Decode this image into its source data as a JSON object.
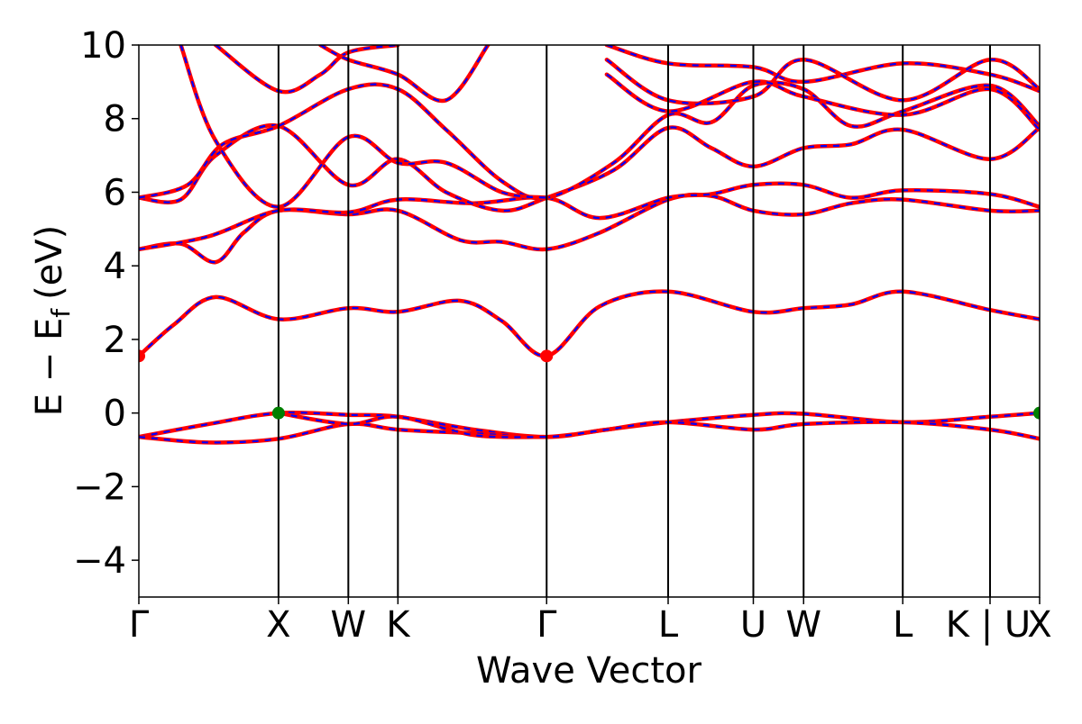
{
  "chart_data": {
    "type": "line",
    "title": "",
    "xlabel": "Wave Vector",
    "ylabel_main": "E − E",
    "ylabel_sub": "f",
    "ylabel_unit": "(eV)",
    "ylim": [
      -5,
      10
    ],
    "yticks": [
      -4,
      -2,
      0,
      2,
      4,
      6,
      8,
      10
    ],
    "ytick_labels": [
      "−4",
      "−2",
      "0",
      "2",
      "4",
      "6",
      "8",
      "10"
    ],
    "xlim": [
      0,
      6.45
    ],
    "kpoints": [
      {
        "label": "Γ",
        "x": 0.0
      },
      {
        "label": "X",
        "x": 1.0
      },
      {
        "label": "W",
        "x": 1.5
      },
      {
        "label": "K",
        "x": 1.855
      },
      {
        "label": "Γ",
        "x": 2.92
      },
      {
        "label": "L",
        "x": 3.79
      },
      {
        "label": "U",
        "x": 4.4
      },
      {
        "label": "W",
        "x": 4.76
      },
      {
        "label": "L",
        "x": 5.47
      },
      {
        "label": "K | U",
        "x": 6.095
      },
      {
        "label": "X",
        "x": 6.45
      }
    ],
    "series_style": [
      {
        "color": "#ff0000",
        "style": "solid"
      },
      {
        "color": "#0000ff",
        "style": "dashed"
      }
    ],
    "markers": [
      {
        "x": 0.0,
        "y": 1.55,
        "color": "#ff0000",
        "meaning": "CBM"
      },
      {
        "x": 2.92,
        "y": 1.55,
        "color": "#ff0000",
        "meaning": "CBM"
      },
      {
        "x": 1.0,
        "y": 0.0,
        "color": "#008000",
        "meaning": "VBM"
      },
      {
        "x": 6.45,
        "y": 0.0,
        "color": "#008000",
        "meaning": "VBM"
      }
    ],
    "bands": [
      {
        "name": "valence-1",
        "points": [
          [
            0,
            -0.65
          ],
          [
            0.5,
            -0.3
          ],
          [
            1.0,
            0.0
          ],
          [
            1.5,
            -0.05
          ],
          [
            1.855,
            -0.1
          ],
          [
            2.4,
            -0.45
          ],
          [
            2.92,
            -0.65
          ],
          [
            3.35,
            -0.45
          ],
          [
            3.79,
            -0.25
          ],
          [
            4.4,
            -0.05
          ],
          [
            4.76,
            -0.02
          ],
          [
            5.47,
            -0.25
          ],
          [
            6.095,
            -0.1
          ],
          [
            6.45,
            0.0
          ]
        ]
      },
      {
        "name": "valence-2",
        "points": [
          [
            0,
            -0.65
          ],
          [
            0.5,
            -0.8
          ],
          [
            1.0,
            -0.7
          ],
          [
            1.5,
            -0.3
          ],
          [
            1.855,
            -0.45
          ],
          [
            2.4,
            -0.55
          ],
          [
            2.92,
            -0.65
          ],
          [
            3.35,
            -0.45
          ],
          [
            3.79,
            -0.25
          ],
          [
            4.4,
            -0.45
          ],
          [
            4.76,
            -0.3
          ],
          [
            5.47,
            -0.25
          ],
          [
            6.095,
            -0.45
          ],
          [
            6.45,
            -0.7
          ]
        ]
      },
      {
        "name": "valence-3",
        "points": [
          [
            1.0,
            0.0
          ],
          [
            1.5,
            -0.3
          ],
          [
            1.855,
            -0.1
          ],
          [
            2.4,
            -0.6
          ],
          [
            2.92,
            -0.65
          ]
        ]
      },
      {
        "name": "conduction-1",
        "points": [
          [
            0,
            1.55
          ],
          [
            0.25,
            2.4
          ],
          [
            0.55,
            3.15
          ],
          [
            1.0,
            2.55
          ],
          [
            1.5,
            2.85
          ],
          [
            1.855,
            2.75
          ],
          [
            2.3,
            3.05
          ],
          [
            2.6,
            2.5
          ],
          [
            2.92,
            1.55
          ],
          [
            3.3,
            2.9
          ],
          [
            3.79,
            3.3
          ],
          [
            4.4,
            2.75
          ],
          [
            4.76,
            2.85
          ],
          [
            5.1,
            2.95
          ],
          [
            5.47,
            3.3
          ],
          [
            6.095,
            2.8
          ],
          [
            6.45,
            2.55
          ]
        ]
      },
      {
        "name": "cb-2",
        "points": [
          [
            0,
            4.45
          ],
          [
            0.3,
            4.6
          ],
          [
            0.55,
            4.1
          ],
          [
            0.75,
            4.9
          ],
          [
            1.0,
            5.5
          ],
          [
            1.5,
            5.4
          ],
          [
            1.855,
            5.5
          ],
          [
            2.3,
            4.7
          ],
          [
            2.6,
            4.65
          ],
          [
            2.92,
            4.45
          ],
          [
            3.3,
            4.9
          ],
          [
            3.79,
            5.8
          ],
          [
            4.1,
            5.9
          ],
          [
            4.4,
            5.5
          ],
          [
            4.76,
            5.4
          ],
          [
            5.1,
            5.7
          ],
          [
            5.47,
            5.8
          ],
          [
            6.095,
            5.5
          ],
          [
            6.45,
            5.5
          ]
        ]
      },
      {
        "name": "cb-3",
        "points": [
          [
            0,
            4.45
          ],
          [
            0.5,
            4.8
          ],
          [
            1.0,
            5.5
          ],
          [
            1.5,
            5.45
          ],
          [
            1.855,
            5.8
          ],
          [
            2.4,
            5.7
          ],
          [
            2.92,
            5.85
          ],
          [
            3.3,
            5.3
          ],
          [
            3.79,
            5.85
          ],
          [
            4.1,
            5.95
          ],
          [
            4.4,
            6.2
          ],
          [
            4.76,
            6.2
          ],
          [
            5.1,
            5.85
          ],
          [
            5.47,
            6.05
          ],
          [
            6.095,
            5.95
          ],
          [
            6.45,
            5.6
          ]
        ]
      },
      {
        "name": "cb-4",
        "points": [
          [
            0,
            5.85
          ],
          [
            0.3,
            5.8
          ],
          [
            0.55,
            7.0
          ],
          [
            1.0,
            7.8
          ],
          [
            1.5,
            6.2
          ],
          [
            1.855,
            6.9
          ],
          [
            2.2,
            6.0
          ],
          [
            2.6,
            5.5
          ],
          [
            2.92,
            5.85
          ],
          [
            3.4,
            6.6
          ],
          [
            3.79,
            7.75
          ],
          [
            4.1,
            7.2
          ],
          [
            4.4,
            6.7
          ],
          [
            4.76,
            7.2
          ],
          [
            5.1,
            7.3
          ],
          [
            5.47,
            7.7
          ],
          [
            6.095,
            6.9
          ],
          [
            6.45,
            7.75
          ]
        ]
      },
      {
        "name": "cb-5",
        "points": [
          [
            0,
            5.85
          ],
          [
            0.35,
            6.2
          ],
          [
            0.6,
            7.3
          ],
          [
            1.0,
            7.8
          ],
          [
            1.5,
            8.8
          ],
          [
            1.855,
            8.8
          ],
          [
            2.2,
            7.7
          ],
          [
            2.6,
            6.3
          ],
          [
            2.92,
            5.85
          ],
          [
            3.4,
            6.8
          ],
          [
            3.79,
            8.1
          ],
          [
            4.1,
            7.9
          ],
          [
            4.4,
            8.9
          ],
          [
            4.76,
            8.8
          ],
          [
            5.1,
            7.8
          ],
          [
            5.47,
            8.2
          ],
          [
            6.095,
            8.9
          ],
          [
            6.45,
            7.8
          ]
        ]
      },
      {
        "name": "cb-6",
        "points": [
          [
            0.3,
            10.0
          ],
          [
            0.55,
            7.4
          ],
          [
            1.0,
            5.6
          ],
          [
            1.5,
            7.5
          ],
          [
            1.855,
            6.8
          ],
          [
            2.2,
            6.8
          ],
          [
            2.6,
            6.0
          ],
          [
            2.92,
            5.85
          ]
        ]
      },
      {
        "name": "cb-7",
        "points": [
          [
            0.55,
            10.0
          ],
          [
            1.0,
            8.75
          ],
          [
            1.3,
            9.2
          ],
          [
            1.5,
            9.8
          ],
          [
            1.855,
            10.0
          ]
        ]
      },
      {
        "name": "cb-8",
        "points": [
          [
            1.3,
            10.0
          ],
          [
            1.5,
            9.6
          ],
          [
            1.855,
            9.2
          ],
          [
            2.2,
            8.5
          ],
          [
            2.5,
            10.0
          ]
        ]
      },
      {
        "name": "cb-9",
        "points": [
          [
            3.35,
            10.0
          ],
          [
            3.79,
            9.5
          ],
          [
            4.4,
            9.4
          ],
          [
            4.76,
            9.0
          ],
          [
            5.47,
            9.5
          ],
          [
            6.095,
            9.2
          ],
          [
            6.45,
            8.75
          ]
        ]
      },
      {
        "name": "cb-10",
        "points": [
          [
            3.35,
            9.6
          ],
          [
            3.79,
            8.5
          ],
          [
            4.4,
            8.6
          ],
          [
            4.76,
            9.6
          ],
          [
            5.47,
            8.5
          ],
          [
            6.095,
            9.6
          ],
          [
            6.45,
            8.8
          ]
        ]
      },
      {
        "name": "cb-11",
        "points": [
          [
            3.35,
            9.2
          ],
          [
            3.79,
            8.2
          ],
          [
            4.4,
            9.0
          ],
          [
            4.76,
            8.6
          ],
          [
            5.47,
            8.1
          ],
          [
            6.095,
            8.8
          ],
          [
            6.45,
            7.7
          ]
        ]
      }
    ]
  }
}
